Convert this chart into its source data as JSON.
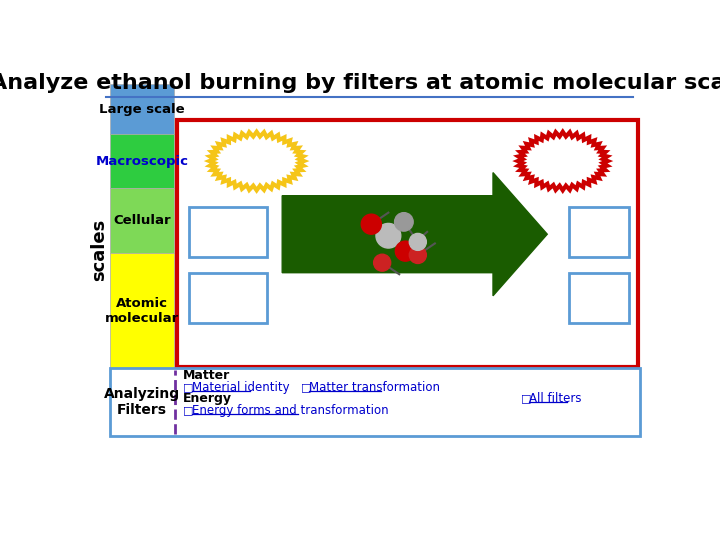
{
  "title": "Analyze ethanol burning by filters at atomic molecular scale",
  "title_fontsize": 16,
  "title_fontweight": "bold",
  "title_color": "#000000",
  "background_color": "#ffffff",
  "scales_label": "scales",
  "scale_labels": [
    "Large scale",
    "Macroscopic",
    "Cellular",
    "Atomic\nmolecular"
  ],
  "scale_colors": [
    "#5b9bd5",
    "#2ecc40",
    "#7ed957",
    "#ffff00"
  ],
  "scale_text_colors": [
    "#000000",
    "#0000cc",
    "#000000",
    "#000000"
  ],
  "analyzing_label": "Analyzing\nFilters",
  "matter_label": "Matter",
  "energy_label": "Energy",
  "filter_row1_checkbox1": "□",
  "filter_row1_text1": "Material identity",
  "filter_row1_checkbox2": "□",
  "filter_row1_text2": "Matter transformation",
  "filter_row2_checkbox_all": "□",
  "filter_row2_text_all": "All filters",
  "filter_row3_checkbox": "□",
  "filter_row3_text": "Energy forms and transformation",
  "main_box_color": "#cc0000",
  "arrow_fill": "#1a5c00",
  "left_blob_color": "#f5c518",
  "right_blob_color": "#cc0000",
  "rect_border_color": "#5b9bd5",
  "bottom_box_border_color": "#5b9bd5",
  "separator_color": "#7030a0",
  "underline_color": "#0000cc",
  "title_line_color": "#4472c4"
}
